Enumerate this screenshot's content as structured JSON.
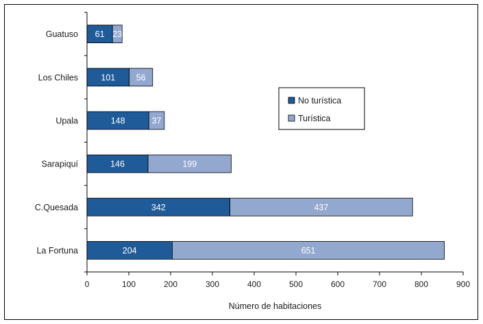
{
  "chart_data": {
    "type": "bar",
    "orientation": "horizontal",
    "stacked": true,
    "categories": [
      "Guatuso",
      "Los Chiles",
      "Upala",
      "Sarapiquí",
      "C.Quesada",
      "La Fortuna"
    ],
    "series": [
      {
        "name": "No turística",
        "values": [
          61,
          101,
          148,
          146,
          342,
          204
        ],
        "color": "#1f5a99"
      },
      {
        "name": "Turística",
        "values": [
          23,
          56,
          37,
          199,
          437,
          651
        ],
        "color": "#93a8cf"
      }
    ],
    "xlabel": "Número de habitaciones",
    "ylabel": "",
    "xlim": [
      0,
      900
    ],
    "x_ticks": [
      0,
      100,
      200,
      300,
      400,
      500,
      600,
      700,
      800,
      900
    ],
    "grid": false,
    "legend_position": "right"
  }
}
